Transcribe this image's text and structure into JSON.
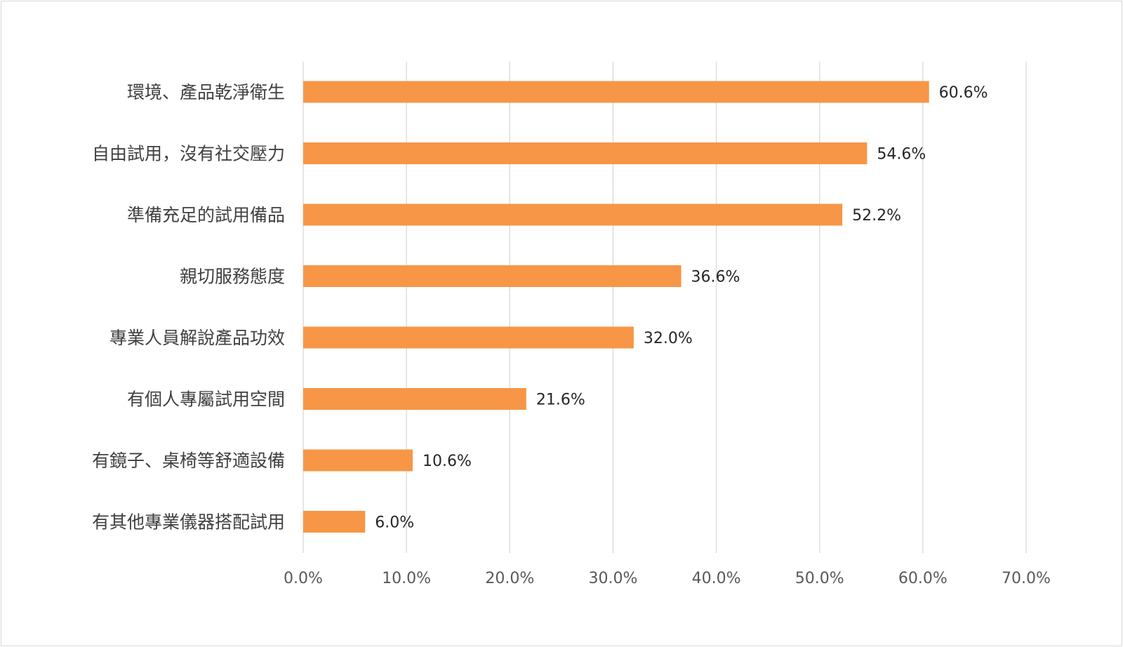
{
  "chart_data": {
    "type": "bar",
    "orientation": "horizontal",
    "title": "",
    "xlabel": "",
    "ylabel": "",
    "categories": [
      "環境、產品乾淨衛生",
      "自由試用，沒有社交壓力",
      "準備充足的試用備品",
      "親切服務態度",
      "專業人員解說產品功效",
      "有個人專屬試用空間",
      "有鏡子、桌椅等舒適設備",
      "有其他專業儀器搭配試用"
    ],
    "values": [
      60.6,
      54.6,
      52.2,
      36.6,
      32.0,
      21.6,
      10.6,
      6.0
    ],
    "value_labels": [
      "60.6%",
      "54.6%",
      "52.2%",
      "36.6%",
      "32.0%",
      "21.6%",
      "10.6%",
      "6.0%"
    ],
    "xlim": [
      0,
      70
    ],
    "xticks": [
      0,
      10,
      20,
      30,
      40,
      50,
      60,
      70
    ],
    "xtick_labels": [
      "0.0%",
      "10.0%",
      "20.0%",
      "30.0%",
      "40.0%",
      "50.0%",
      "60.0%",
      "70.0%"
    ],
    "grid": true,
    "legend": "none",
    "bar_color": "#F79646",
    "grid_color": "#D9D9D9"
  }
}
